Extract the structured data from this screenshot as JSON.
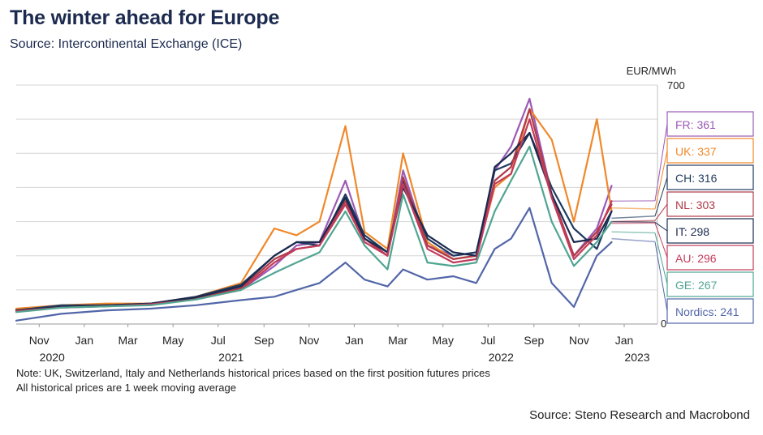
{
  "title": "The winter ahead for Europe",
  "subtitle": "Source: Intercontinental Exchange (ICE)",
  "notes": [
    "Note: UK, Switzerland, Italy and Netherlands historical prices based on the first position futures prices",
    "All historical prices are 1 week moving average"
  ],
  "source_footer": "Source: Steno Research and Macrobond",
  "chart_data": {
    "type": "line",
    "ylabel": "EUR/MWh",
    "ylim": [
      0,
      700
    ],
    "ytick_labels": [
      "700",
      "0"
    ],
    "xlim": [
      "2020-10-01",
      "2023-02-15"
    ],
    "x_ticks": [
      {
        "date": "2020-11-01",
        "label": "Nov",
        "year": "2020"
      },
      {
        "date": "2021-01-01",
        "label": "Jan",
        "year": ""
      },
      {
        "date": "2021-03-01",
        "label": "Mar",
        "year": ""
      },
      {
        "date": "2021-05-01",
        "label": "May",
        "year": ""
      },
      {
        "date": "2021-07-01",
        "label": "Jul",
        "year": "2021"
      },
      {
        "date": "2021-09-01",
        "label": "Sep",
        "year": ""
      },
      {
        "date": "2021-11-01",
        "label": "Nov",
        "year": ""
      },
      {
        "date": "2022-01-01",
        "label": "Jan",
        "year": ""
      },
      {
        "date": "2022-03-01",
        "label": "Mar",
        "year": ""
      },
      {
        "date": "2022-05-01",
        "label": "May",
        "year": ""
      },
      {
        "date": "2022-07-01",
        "label": "Jul",
        "year": "2022"
      },
      {
        "date": "2022-09-01",
        "label": "Sep",
        "year": ""
      },
      {
        "date": "2022-11-01",
        "label": "Nov",
        "year": ""
      },
      {
        "date": "2023-01-01",
        "label": "Jan",
        "year": "2023"
      }
    ],
    "x": [
      "2020-10-01",
      "2020-12-01",
      "2021-02-01",
      "2021-04-01",
      "2021-06-01",
      "2021-08-01",
      "2021-09-15",
      "2021-10-15",
      "2021-11-15",
      "2021-12-20",
      "2022-01-15",
      "2022-02-15",
      "2022-03-08",
      "2022-04-10",
      "2022-05-15",
      "2022-06-15",
      "2022-07-10",
      "2022-08-01",
      "2022-08-26",
      "2022-09-25",
      "2022-10-25",
      "2022-11-25",
      "2022-12-15"
    ],
    "series": [
      {
        "name": "FR",
        "value": 361,
        "color": "#9b59b6",
        "values": [
          40,
          50,
          55,
          60,
          75,
          100,
          170,
          230,
          240,
          420,
          250,
          200,
          450,
          230,
          200,
          210,
          450,
          520,
          660,
          380,
          200,
          280,
          405
        ]
      },
      {
        "name": "UK",
        "value": 337,
        "color": "#f0882a",
        "values": [
          45,
          55,
          60,
          60,
          80,
          120,
          280,
          260,
          300,
          580,
          270,
          220,
          500,
          240,
          190,
          200,
          400,
          440,
          630,
          540,
          300,
          600,
          330
        ]
      },
      {
        "name": "CH",
        "value": 316,
        "color": "#1f3a5f",
        "values": [
          40,
          55,
          55,
          60,
          80,
          115,
          200,
          240,
          230,
          380,
          260,
          210,
          420,
          250,
          200,
          210,
          450,
          470,
          560,
          400,
          280,
          220,
          330
        ]
      },
      {
        "name": "NL",
        "value": 303,
        "color": "#b03a48",
        "values": [
          40,
          50,
          55,
          58,
          75,
          105,
          190,
          220,
          230,
          360,
          250,
          200,
          430,
          230,
          190,
          200,
          420,
          460,
          630,
          380,
          200,
          270,
          350
        ]
      },
      {
        "name": "IT",
        "value": 298,
        "color": "#1c2a4f",
        "values": [
          40,
          50,
          55,
          60,
          78,
          110,
          200,
          240,
          240,
          370,
          250,
          210,
          400,
          260,
          210,
          200,
          460,
          500,
          560,
          380,
          240,
          250,
          330
        ]
      },
      {
        "name": "AU",
        "value": 296,
        "color": "#c23b5b",
        "values": [
          38,
          48,
          52,
          58,
          72,
          100,
          180,
          220,
          230,
          350,
          240,
          200,
          410,
          220,
          180,
          190,
          410,
          440,
          600,
          370,
          190,
          260,
          360
        ]
      },
      {
        "name": "GE",
        "value": 267,
        "color": "#4fa591",
        "values": [
          35,
          48,
          52,
          55,
          72,
          100,
          150,
          180,
          210,
          330,
          230,
          160,
          380,
          180,
          170,
          180,
          330,
          420,
          520,
          300,
          170,
          240,
          300
        ]
      },
      {
        "name": "Nordics",
        "value": 241,
        "color": "#5266a8",
        "values": [
          10,
          30,
          40,
          45,
          55,
          70,
          80,
          100,
          120,
          180,
          130,
          110,
          160,
          130,
          140,
          120,
          220,
          250,
          340,
          120,
          50,
          200,
          240
        ]
      }
    ],
    "projections": [
      {
        "name": "FR",
        "from": 360,
        "to": 361
      },
      {
        "name": "UK",
        "from": 340,
        "to": 337
      },
      {
        "name": "CH",
        "from": 310,
        "to": 316
      },
      {
        "name": "NL",
        "from": 300,
        "to": 303
      },
      {
        "name": "IT",
        "from": 300,
        "to": 298
      },
      {
        "name": "AU",
        "from": 295,
        "to": 296
      },
      {
        "name": "GE",
        "from": 270,
        "to": 267
      },
      {
        "name": "Nordics",
        "from": 250,
        "to": 241
      }
    ],
    "grid": true,
    "legend": "right"
  }
}
